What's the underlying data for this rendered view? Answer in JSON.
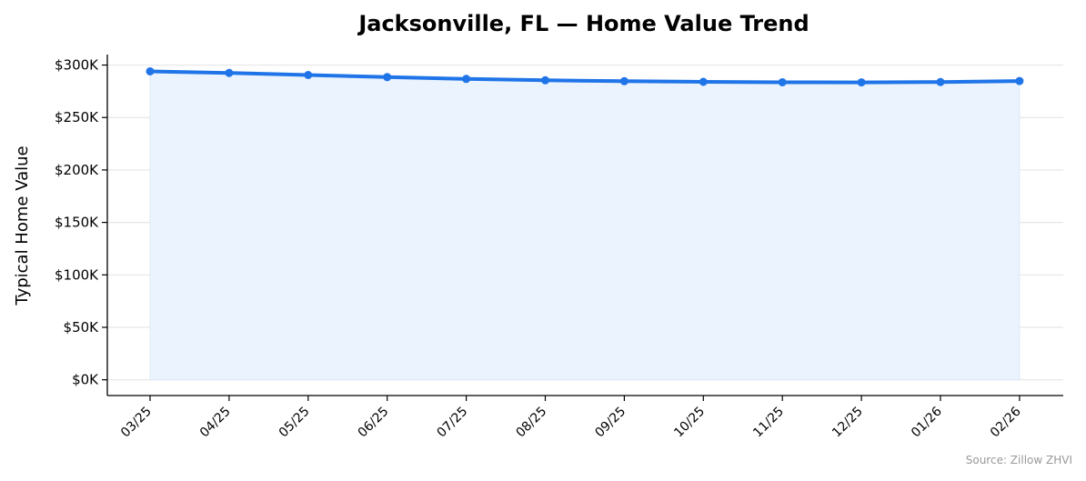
{
  "chart_data": {
    "type": "line",
    "title": "Jacksonville, FL — Home Value Trend",
    "xlabel": "",
    "ylabel": "Typical Home Value",
    "categories": [
      "03/25",
      "04/25",
      "05/25",
      "06/25",
      "07/25",
      "08/25",
      "09/25",
      "10/25",
      "11/25",
      "12/25",
      "01/26",
      "02/26"
    ],
    "series": [
      {
        "values": [
          294000,
          292500,
          290500,
          288500,
          286800,
          285500,
          284600,
          284000,
          283600,
          283500,
          283800,
          284800
        ]
      }
    ],
    "ylim": [
      -15000,
      310000
    ],
    "yticks": [
      0,
      50000,
      100000,
      150000,
      200000,
      250000,
      300000
    ],
    "ytick_labels": [
      "$0K",
      "$50K",
      "$100K",
      "$150K",
      "$200K",
      "$250K",
      "$300K"
    ],
    "grid": "horizontal",
    "area_fill": true,
    "source": "Source: Zillow ZHVI",
    "colors": {
      "line": "#1f74e8",
      "fill": "#eaf3fe",
      "grid": "#e6e6e6",
      "axis": "#000000"
    }
  }
}
